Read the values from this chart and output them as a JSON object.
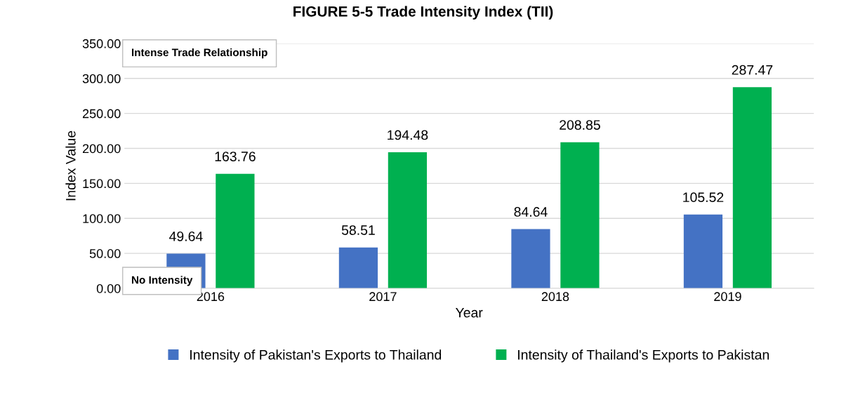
{
  "chart_data": {
    "type": "bar",
    "title": "FIGURE 5-5 Trade Intensity Index (TII)",
    "xlabel": "Year",
    "ylabel": "Index Value",
    "categories": [
      "2016",
      "2017",
      "2018",
      "2019"
    ],
    "series": [
      {
        "name": "Intensity of Pakistan's Exports to Thailand",
        "color": "#4472c4",
        "values": [
          49.64,
          58.51,
          84.64,
          105.52
        ]
      },
      {
        "name": "Intensity of Thailand's Exports to Pakistan",
        "color": "#00b050",
        "values": [
          163.76,
          194.48,
          208.85,
          287.47
        ]
      }
    ],
    "ylim": [
      0,
      350
    ],
    "yticks": [
      {
        "value": 0,
        "label": "0.00"
      },
      {
        "value": 50,
        "label": "50.00"
      },
      {
        "value": 100,
        "label": "100.00"
      },
      {
        "value": 150,
        "label": "150.00"
      },
      {
        "value": 200,
        "label": "200.00"
      },
      {
        "value": 250,
        "label": "250.00"
      },
      {
        "value": 300,
        "label": "300.00"
      },
      {
        "value": 350,
        "label": "350.00"
      }
    ],
    "grid": "y",
    "legend": "bottom",
    "data_labels": true,
    "annotations": [
      "Intense Trade Relationship",
      "No Intensity"
    ]
  }
}
